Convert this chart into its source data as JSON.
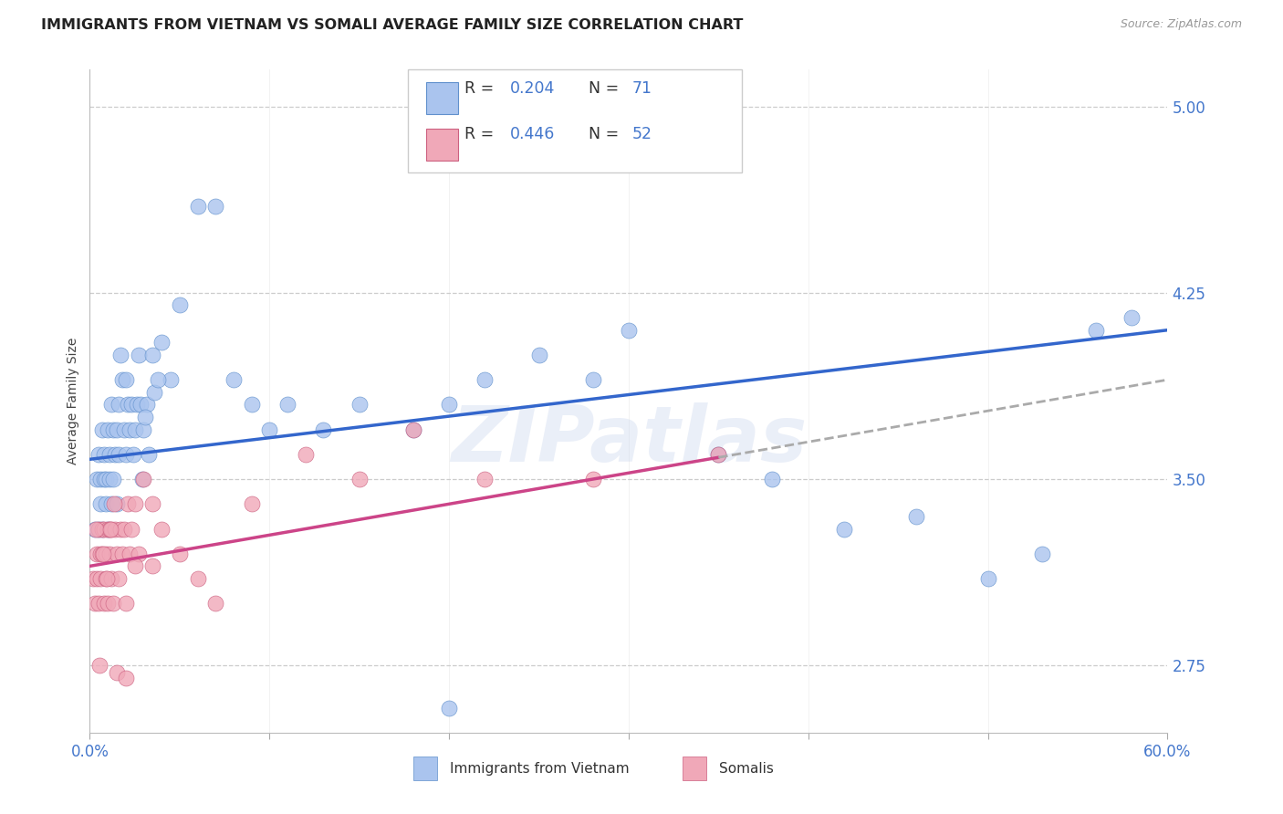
{
  "title": "IMMIGRANTS FROM VIETNAM VS SOMALI AVERAGE FAMILY SIZE CORRELATION CHART",
  "source": "Source: ZipAtlas.com",
  "ylabel": "Average Family Size",
  "xlim": [
    0.0,
    60.0
  ],
  "ylim": [
    2.48,
    5.15
  ],
  "yticks": [
    2.75,
    3.5,
    4.25,
    5.0
  ],
  "ytick_labels": [
    "2.75",
    "3.50",
    "4.25",
    "5.00"
  ],
  "background_color": "#ffffff",
  "grid_color": "#cccccc",
  "watermark": "ZIPatlas",
  "vietnam_color": "#aac4ee",
  "vietnam_edge": "#6090cc",
  "somali_color": "#f0a8b8",
  "somali_edge": "#cc6080",
  "vietnam_line_color": "#3366cc",
  "somali_line_color": "#cc4488",
  "tick_color": "#4477cc",
  "title_fontsize": 11.5,
  "axis_fontsize": 10,
  "legend_r1": "R = 0.204",
  "legend_n1": "N = 71",
  "legend_r2": "R = 0.446",
  "legend_n2": "N = 52",
  "viet_x": [
    0.3,
    0.4,
    0.5,
    0.5,
    0.6,
    0.6,
    0.7,
    0.7,
    0.8,
    0.8,
    0.9,
    0.9,
    1.0,
    1.0,
    1.1,
    1.1,
    1.2,
    1.2,
    1.3,
    1.3,
    1.4,
    1.5,
    1.5,
    1.6,
    1.6,
    1.7,
    1.8,
    1.9,
    2.0,
    2.0,
    2.1,
    2.2,
    2.3,
    2.4,
    2.5,
    2.6,
    2.7,
    2.8,
    3.0,
    3.2,
    3.5,
    4.0,
    4.5,
    5.0,
    6.0,
    7.0,
    8.0,
    9.0,
    10.0,
    11.0,
    13.0,
    15.0,
    18.0,
    20.0,
    22.0,
    25.0,
    28.0,
    30.0,
    35.0,
    38.0,
    42.0,
    46.0,
    50.0,
    53.0,
    56.0,
    58.0,
    2.9,
    3.1,
    3.3,
    3.6,
    3.8
  ],
  "viet_y": [
    3.3,
    3.5,
    3.3,
    3.6,
    3.4,
    3.5,
    3.3,
    3.7,
    3.5,
    3.6,
    3.4,
    3.5,
    3.3,
    3.7,
    3.5,
    3.6,
    3.8,
    3.4,
    3.5,
    3.7,
    3.6,
    3.4,
    3.7,
    3.8,
    3.6,
    4.0,
    3.9,
    3.7,
    3.6,
    3.9,
    3.8,
    3.7,
    3.8,
    3.6,
    3.7,
    3.8,
    4.0,
    3.8,
    3.7,
    3.8,
    4.0,
    4.05,
    3.9,
    4.2,
    4.6,
    4.6,
    3.9,
    3.8,
    3.7,
    3.8,
    3.7,
    3.8,
    3.7,
    3.8,
    3.9,
    4.0,
    3.9,
    4.1,
    3.6,
    3.5,
    3.3,
    3.35,
    3.1,
    3.2,
    4.1,
    4.15,
    3.5,
    3.75,
    3.6,
    3.85,
    3.9
  ],
  "som_x": [
    0.2,
    0.3,
    0.4,
    0.4,
    0.5,
    0.5,
    0.6,
    0.6,
    0.7,
    0.7,
    0.8,
    0.8,
    0.9,
    0.9,
    1.0,
    1.0,
    1.1,
    1.1,
    1.2,
    1.2,
    1.3,
    1.4,
    1.5,
    1.6,
    1.7,
    1.8,
    1.9,
    2.0,
    2.1,
    2.2,
    2.3,
    2.5,
    2.7,
    3.0,
    3.5,
    4.0,
    5.0,
    6.0,
    7.0,
    9.0,
    12.0,
    15.0,
    18.0,
    22.0,
    28.0,
    35.0,
    0.35,
    0.55,
    0.75,
    0.95,
    1.15,
    1.35
  ],
  "som_y": [
    3.1,
    3.0,
    3.2,
    3.1,
    3.0,
    3.3,
    3.2,
    3.1,
    3.3,
    3.2,
    3.0,
    3.3,
    3.2,
    3.1,
    3.3,
    3.0,
    3.2,
    3.3,
    3.1,
    3.3,
    3.0,
    3.3,
    3.2,
    3.1,
    3.3,
    3.2,
    3.3,
    3.0,
    3.4,
    3.2,
    3.3,
    3.4,
    3.2,
    3.5,
    3.4,
    3.3,
    3.2,
    3.1,
    3.0,
    3.4,
    3.6,
    3.5,
    3.7,
    3.5,
    3.5,
    3.6,
    3.3,
    2.75,
    3.2,
    3.1,
    3.3,
    3.4
  ]
}
